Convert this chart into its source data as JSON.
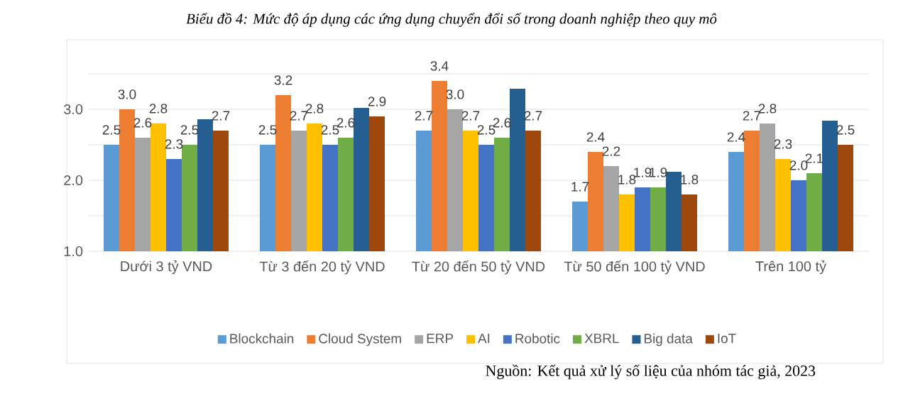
{
  "chart_data": {
    "type": "bar",
    "title": "Biểu đồ 4: Mức độ áp dụng các ứng dụng chuyển đổi số trong doanh nghiệp theo quy mô",
    "categories": [
      "Dưới 3 tỷ VND",
      "Từ 3 đến 20 tỷ VND",
      "Từ 20 đến 50 tỷ VND",
      "Từ 50 đến 100 tỷ VND",
      "Trên 100 tỷ"
    ],
    "series": [
      {
        "name": "Blockchain",
        "color": "#5b9bd5",
        "values": [
          2.5,
          2.5,
          2.7,
          1.7,
          2.4
        ],
        "value_labels": [
          "2.5",
          "2.5",
          "2.7",
          "1.7",
          "2.4"
        ]
      },
      {
        "name": "Cloud System",
        "color": "#ed7d31",
        "values": [
          3.0,
          3.2,
          3.4,
          2.4,
          2.7
        ],
        "value_labels": [
          "3.0",
          "3.2",
          "3.4",
          "2.4",
          "2.7"
        ]
      },
      {
        "name": "ERP",
        "color": "#a5a5a5",
        "values": [
          2.6,
          2.7,
          3.0,
          2.2,
          2.8
        ],
        "value_labels": [
          "2.6",
          "2.7",
          "3.0",
          "2.2",
          "2.8"
        ]
      },
      {
        "name": "AI",
        "color": "#ffc000",
        "values": [
          2.8,
          2.8,
          2.7,
          1.8,
          2.3
        ],
        "value_labels": [
          "2.8",
          "2.8",
          "2.7",
          "1.8",
          "2.3"
        ]
      },
      {
        "name": "Robotic",
        "color": "#4472c4",
        "values": [
          2.3,
          2.5,
          2.5,
          1.9,
          2.0
        ],
        "value_labels": [
          "2.3",
          "2.5",
          "2.5",
          "1.9",
          "2.0"
        ]
      },
      {
        "name": "XBRL",
        "color": "#70ad47",
        "values": [
          2.5,
          2.6,
          2.6,
          1.9,
          2.1
        ],
        "value_labels": [
          "2.5",
          "2.6",
          "2.6",
          "1.9",
          "2.1"
        ]
      },
      {
        "name": "Big data",
        "color": "#255e91",
        "values": [
          2.86,
          3.02,
          3.29,
          2.12,
          2.84
        ]
      },
      {
        "name": "IoT",
        "color": "#9e480e",
        "values": [
          2.7,
          2.9,
          2.7,
          1.8,
          2.5
        ],
        "value_labels": [
          "2.7",
          "2.9",
          "2.7",
          "1.8",
          "2.5"
        ]
      }
    ],
    "ylim": [
      1.0,
      3.5
    ],
    "yticks": [
      {
        "value": 1.0,
        "label": "1.0"
      },
      {
        "value": 1.5,
        "label": null
      },
      {
        "value": 2.0,
        "label": "2.0"
      },
      {
        "value": 2.5,
        "label": null
      },
      {
        "value": 3.0,
        "label": "3.0"
      },
      {
        "value": 3.5,
        "label": null
      }
    ],
    "grid": "y",
    "legend": "bottom",
    "annotations": [
      "Nguồn: Kết quả xử lý số liệu của nhóm tác giả, 2023"
    ]
  }
}
